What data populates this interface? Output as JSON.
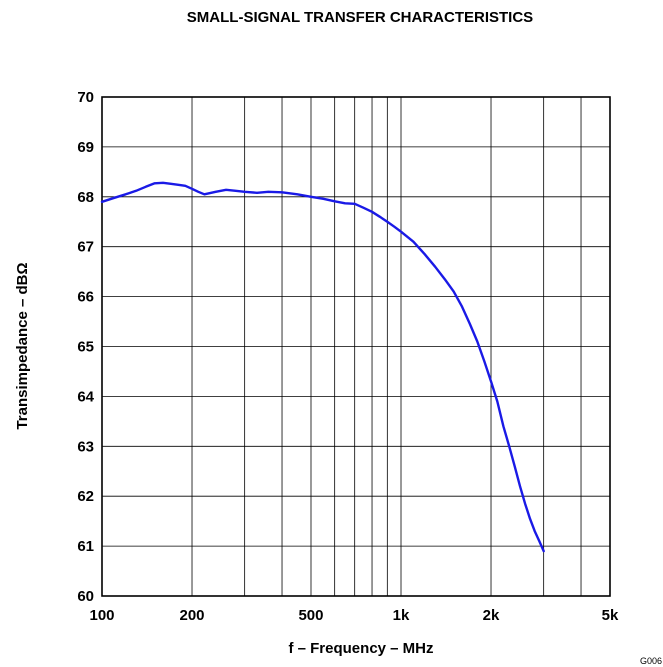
{
  "chart_data": {
    "type": "line",
    "title": "SMALL-SIGNAL TRANSFER CHARACTERISTICS",
    "xlabel": "f – Frequency – MHz",
    "ylabel": "Transimpedance – dBΩ",
    "x_scale": "log",
    "xlim": [
      100,
      5000
    ],
    "ylim": [
      60,
      70
    ],
    "x_ticks": [
      {
        "value": 100,
        "label": "100"
      },
      {
        "value": 200,
        "label": "200"
      },
      {
        "value": 500,
        "label": "500"
      },
      {
        "value": 1000,
        "label": "1k"
      },
      {
        "value": 2000,
        "label": "2k"
      },
      {
        "value": 5000,
        "label": "5k"
      }
    ],
    "y_ticks": [
      {
        "value": 60,
        "label": "60"
      },
      {
        "value": 61,
        "label": "61"
      },
      {
        "value": 62,
        "label": "62"
      },
      {
        "value": 63,
        "label": "63"
      },
      {
        "value": 64,
        "label": "64"
      },
      {
        "value": 65,
        "label": "65"
      },
      {
        "value": 66,
        "label": "66"
      },
      {
        "value": 67,
        "label": "67"
      },
      {
        "value": 68,
        "label": "68"
      },
      {
        "value": 69,
        "label": "69"
      },
      {
        "value": 70,
        "label": "70"
      }
    ],
    "grid": true,
    "legend": "none",
    "series": [
      {
        "color": "#1a1ae6",
        "x": [
          100,
          110,
          120,
          130,
          140,
          150,
          160,
          170,
          180,
          190,
          200,
          210,
          220,
          240,
          260,
          280,
          300,
          330,
          360,
          400,
          450,
          500,
          550,
          600,
          650,
          700,
          750,
          800,
          850,
          900,
          950,
          1000,
          1100,
          1200,
          1300,
          1400,
          1500,
          1600,
          1700,
          1800,
          1900,
          2000,
          2100,
          2200,
          2300,
          2400,
          2500,
          2600,
          2700,
          2800,
          2900,
          3000
        ],
        "y": [
          67.9,
          67.98,
          68.05,
          68.12,
          68.2,
          68.27,
          68.28,
          68.26,
          68.24,
          68.22,
          68.16,
          68.1,
          68.05,
          68.1,
          68.14,
          68.12,
          68.1,
          68.08,
          68.1,
          68.09,
          68.05,
          68.0,
          67.96,
          67.91,
          67.87,
          67.86,
          67.78,
          67.7,
          67.6,
          67.5,
          67.4,
          67.3,
          67.1,
          66.85,
          66.6,
          66.35,
          66.1,
          65.8,
          65.45,
          65.1,
          64.7,
          64.3,
          63.9,
          63.4,
          63.0,
          62.6,
          62.2,
          61.85,
          61.55,
          61.3,
          61.1,
          60.9
        ]
      }
    ],
    "footnote": "G006"
  }
}
